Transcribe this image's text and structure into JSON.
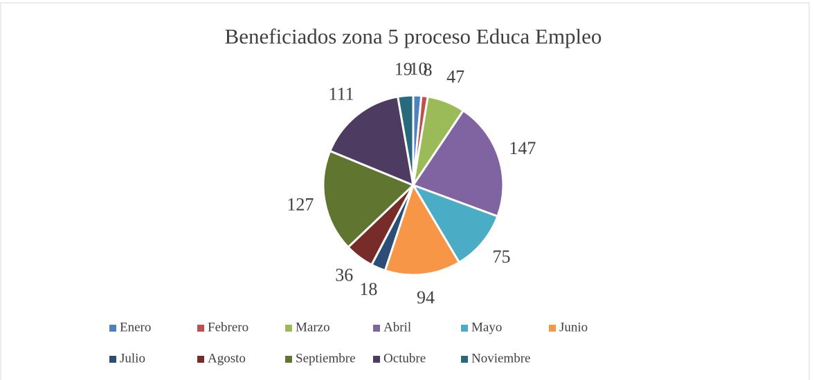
{
  "chart_data": {
    "type": "pie",
    "title": "Beneficiados zona 5 proceso Educa Empleo",
    "categories": [
      "Enero",
      "Febrero",
      "Marzo",
      "Abril",
      "Mayo",
      "Junio",
      "Julio",
      "Agosto",
      "Septiembre",
      "Octubre",
      "Noviembre"
    ],
    "values": [
      10,
      8,
      47,
      147,
      75,
      94,
      18,
      36,
      127,
      111,
      19
    ],
    "colors": [
      "#4f81bd",
      "#c0504d",
      "#9bbb59",
      "#8064a2",
      "#4bacc6",
      "#f79646",
      "#2c4d75",
      "#772c2a",
      "#5f7530",
      "#4d3b62",
      "#276a7c"
    ],
    "legend": "bottom"
  }
}
